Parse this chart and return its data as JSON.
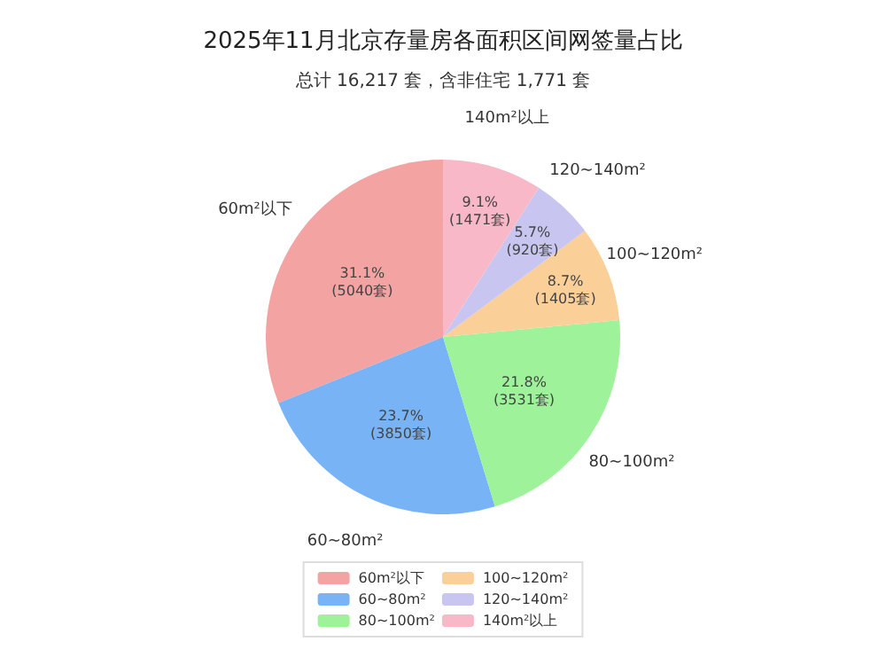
{
  "chart_data": {
    "type": "pie",
    "title": "2025年11月北京存量房各面积区间网签量占比",
    "subtitle": "总计 16,217 套，含非住宅 1,771 套",
    "categories": [
      "60m²以下",
      "60~80m²",
      "80~100m²",
      "100~120m²",
      "120~140m²",
      "140m²以上"
    ],
    "values": [
      31.1,
      23.7,
      21.8,
      8.7,
      5.7,
      9.1
    ],
    "value_labels": [
      "31.1%\n(5040套)",
      "23.7%\n(3850套)",
      "21.8%\n(3531套)",
      "8.7%\n(1405套)",
      "5.7%\n(920套)",
      "9.1%\n(1471套)"
    ],
    "colors": [
      "#f4a3a3",
      "#78b4f5",
      "#9ef29a",
      "#fbcf98",
      "#c8c6f0",
      "#f8b8c8"
    ],
    "legend": "bottom"
  }
}
